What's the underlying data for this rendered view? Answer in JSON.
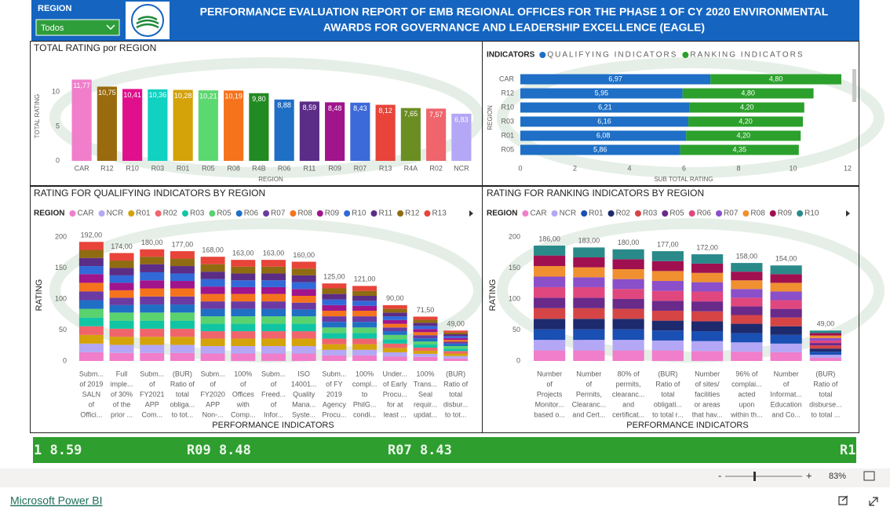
{
  "header": {
    "slicer_label": "REGION",
    "slicer_value": "Todos",
    "title_lines": [
      "PERFORMANCE EVALUATION REPORT OF EMB REGIONAL OFFICES FOR THE PHASE 1 OF CY 2020 ENVIRONMENTAL",
      "AWARDS FOR GOVERNANCE AND LEADERSHIP EXCELLENCE (EAGLE)"
    ]
  },
  "chart_data": [
    {
      "type": "bar",
      "title": "TOTAL RATING por REGION",
      "x_label": "REGION",
      "y_label": "TOTAL RATING",
      "categories": [
        "CAR",
        "R12",
        "R10",
        "R03",
        "R01",
        "R05",
        "R08",
        "R4B",
        "R06",
        "R11",
        "R09",
        "R07",
        "R13",
        "R4A",
        "R02",
        "NCR"
      ],
      "values": [
        11.77,
        10.75,
        10.41,
        10.36,
        10.28,
        10.21,
        10.19,
        9.8,
        8.88,
        8.59,
        8.48,
        8.43,
        8.12,
        7.65,
        7.57,
        6.83
      ],
      "value_labels": [
        "11,77",
        "10,75",
        "10,41",
        "10,36",
        "10,28",
        "10,21",
        "10,19",
        "9,80",
        "8,88",
        "8,59",
        "8,48",
        "8,43",
        "8,12",
        "7,65",
        "7,57",
        "6,83"
      ],
      "colors": [
        "#f07ecb",
        "#9a6b0e",
        "#e0108c",
        "#11d1c1",
        "#d4a30a",
        "#5cd870",
        "#f5731d",
        "#228a22",
        "#1f6fc5",
        "#5b2d86",
        "#a0148c",
        "#3c6ad8",
        "#e8443a",
        "#6b8e23",
        "#f0646c",
        "#b4a7f5"
      ],
      "ylim": [
        0,
        13
      ],
      "yticks": [
        0,
        5,
        10
      ]
    },
    {
      "type": "hbar_stacked",
      "legend_title": "INDICATORS",
      "x_label": "SUB TOTAL RATING",
      "y_label": "REGION",
      "categories": [
        "CAR",
        "R12",
        "R10",
        "R03",
        "R01",
        "R05"
      ],
      "series": [
        {
          "name": "QUALIFYING INDICATORS",
          "color": "#1e6fc5",
          "values": [
            6.97,
            5.95,
            6.21,
            6.16,
            6.08,
            5.86
          ],
          "value_labels": [
            "6,97",
            "5,95",
            "6,21",
            "6,16",
            "6,08",
            "5,86"
          ]
        },
        {
          "name": "RANKING INDICATORS",
          "color": "#2ca02c",
          "values": [
            4.8,
            4.8,
            4.2,
            4.2,
            4.2,
            4.35
          ],
          "value_labels": [
            "4,80",
            "4,80",
            "4,20",
            "4,20",
            "4,20",
            "4,35"
          ]
        }
      ],
      "xlim": [
        0,
        12
      ],
      "xticks": [
        0,
        2,
        4,
        6,
        8,
        10,
        12
      ]
    },
    {
      "type": "stacked_bar",
      "title": "RATING FOR QUALIFYING INDICATORS BY REGION",
      "legend_title": "REGION",
      "x_label": "PERFORMANCE INDICATORS",
      "y_label": "RATING",
      "categories": [
        [
          "Subm...",
          "of 2019",
          "SALN",
          "of",
          "Offici..."
        ],
        [
          "Full",
          "imple...",
          "of 30%",
          "of the",
          "prior ..."
        ],
        [
          "Subm...",
          "of",
          "FY2021",
          "APP",
          "Com..."
        ],
        [
          "(BUR)",
          "Ratio of",
          "total",
          "obliga...",
          "to tot..."
        ],
        [
          "Subm...",
          "of",
          "FY2020",
          "APP",
          "Non-..."
        ],
        [
          "100%",
          "of",
          "Offices",
          "with",
          "Comp..."
        ],
        [
          "Subm...",
          "of",
          "Freed...",
          "of",
          "Infor..."
        ],
        [
          "ISO",
          "14001...",
          "Quality",
          "Mana...",
          "Syste..."
        ],
        [
          "Subm...",
          "of FY",
          "2019",
          "Agency",
          "Procu..."
        ],
        [
          "100%",
          "compl...",
          "to",
          "PhilG...",
          "condi..."
        ],
        [
          "Under...",
          "of Early",
          "Procu...",
          "for at",
          "least ..."
        ],
        [
          "100%",
          "Trans...",
          "Seal",
          "requir...",
          "updat..."
        ],
        [
          "(BUR)",
          "Ratio of",
          "total",
          "disbur...",
          "to tot..."
        ]
      ],
      "series": [
        {
          "name": "CAR",
          "color": "#f07ecb",
          "values": [
            14,
            13,
            13,
            13,
            12,
            12,
            12,
            12,
            9,
            9,
            7,
            6.5,
            4
          ]
        },
        {
          "name": "NCR",
          "color": "#b4a7f5",
          "values": [
            14,
            13,
            13,
            13,
            12,
            12,
            12,
            12,
            9,
            9,
            7,
            5,
            4
          ]
        },
        {
          "name": "R01",
          "color": "#d4a30a",
          "values": [
            14,
            13,
            13,
            13,
            12,
            12,
            12,
            12,
            9,
            9,
            7,
            5,
            4
          ]
        },
        {
          "name": "R02",
          "color": "#f0646c",
          "values": [
            14,
            13,
            13,
            13,
            12,
            12,
            12,
            12,
            9,
            9,
            7,
            5,
            4
          ]
        },
        {
          "name": "R03",
          "color": "#11c5a4",
          "values": [
            14,
            13,
            13,
            13,
            12,
            12,
            12,
            12,
            9,
            9,
            7,
            5,
            4
          ]
        },
        {
          "name": "R05",
          "color": "#5ad26e",
          "values": [
            14,
            13,
            13,
            13,
            12,
            12,
            12,
            12,
            9,
            9,
            7,
            5,
            4
          ]
        },
        {
          "name": "R06",
          "color": "#1f6fc5",
          "values": [
            14,
            12,
            13,
            13,
            12,
            12,
            12,
            11,
            9,
            9,
            6,
            5,
            4
          ]
        },
        {
          "name": "R07",
          "color": "#6b3aa3",
          "values": [
            14,
            12,
            13,
            13,
            12,
            12,
            12,
            11,
            9,
            9,
            6,
            5,
            3
          ]
        },
        {
          "name": "R08",
          "color": "#f5731d",
          "values": [
            14,
            12,
            13,
            13,
            12,
            12,
            12,
            11,
            9,
            9,
            6,
            5,
            3
          ]
        },
        {
          "name": "R09",
          "color": "#a0148c",
          "values": [
            14,
            12,
            13,
            12,
            12,
            11,
            11,
            11,
            9,
            8,
            6,
            5,
            3
          ]
        },
        {
          "name": "R10",
          "color": "#3269d8",
          "values": [
            13,
            12,
            13,
            12,
            12,
            11,
            11,
            11,
            9,
            8,
            6,
            5,
            3
          ]
        },
        {
          "name": "R11",
          "color": "#5b2d86",
          "values": [
            13,
            12,
            13,
            12,
            12,
            11,
            11,
            11,
            9,
            8,
            6,
            5,
            3
          ]
        },
        {
          "name": "R12",
          "color": "#8f6b12",
          "values": [
            13,
            12,
            12,
            12,
            12,
            11,
            11,
            11,
            9,
            8,
            6,
            5,
            3
          ]
        },
        {
          "name": "R13",
          "color": "#e8443a",
          "values": [
            13,
            12,
            12,
            12,
            12,
            11,
            11,
            11,
            8,
            8,
            6,
            5,
            3
          ]
        }
      ],
      "totals": [
        192,
        174,
        180,
        177,
        168,
        163,
        163,
        160,
        125,
        121,
        90,
        71.5,
        49
      ],
      "total_labels": [
        "192,00",
        "174,00",
        "180,00",
        "177,00",
        "168,00",
        "163,00",
        "163,00",
        "160,00",
        "125,00",
        "121,00",
        "90,00",
        "71,50",
        "49,00"
      ],
      "ylim": [
        0,
        210
      ],
      "yticks": [
        0,
        50,
        100,
        150,
        200
      ]
    },
    {
      "type": "stacked_bar",
      "title": "RATING FOR RANKING INDICATORS BY REGION",
      "legend_title": "REGION",
      "x_label": "PERFORMANCE INDICATORS",
      "y_label": "RATING",
      "categories": [
        [
          "Number",
          "of",
          "Projects",
          "Monitor...",
          "based o..."
        ],
        [
          "Number",
          "of",
          "Permits,",
          "Clearanc...",
          "and Cert..."
        ],
        [
          "80% of",
          "permits,",
          "clearanc...",
          "and",
          "certificat..."
        ],
        [
          "(BUR)",
          "Ratio of",
          "total",
          "obligati...",
          "to total r..."
        ],
        [
          "Number",
          "of sites/",
          "facilities",
          "or areas",
          "that hav..."
        ],
        [
          "96% of",
          "complai...",
          "acted",
          "upon",
          "within th..."
        ],
        [
          "Number",
          "of",
          "Informat...",
          "Education",
          "and Co..."
        ],
        [
          "(BUR)",
          "Ratio of",
          "total",
          "disburse...",
          "to total ..."
        ]
      ],
      "series": [
        {
          "name": "CAR",
          "color": "#f07ecb",
          "values": [
            17,
            17,
            17,
            17,
            16,
            15,
            14,
            5
          ]
        },
        {
          "name": "NCR",
          "color": "#b4a7f5",
          "values": [
            17,
            17,
            17,
            16,
            16,
            15,
            14,
            5
          ]
        },
        {
          "name": "R01",
          "color": "#1a4fb3",
          "values": [
            17,
            17,
            17,
            16,
            16,
            15,
            14,
            5
          ]
        },
        {
          "name": "R02",
          "color": "#1e2a6e",
          "values": [
            17,
            17,
            17,
            16,
            16,
            15,
            14,
            5
          ]
        },
        {
          "name": "R03",
          "color": "#d64545",
          "values": [
            17,
            17,
            16,
            16,
            16,
            14,
            14,
            5
          ]
        },
        {
          "name": "R05",
          "color": "#6a2a8a",
          "values": [
            17,
            17,
            16,
            16,
            16,
            14,
            14,
            4
          ]
        },
        {
          "name": "R06",
          "color": "#e0477f",
          "values": [
            17,
            17,
            16,
            16,
            16,
            14,
            14,
            4
          ]
        },
        {
          "name": "R07",
          "color": "#8a4fc9",
          "values": [
            17,
            16,
            16,
            16,
            15,
            14,
            14,
            4
          ]
        },
        {
          "name": "R08",
          "color": "#f09030",
          "values": [
            17,
            16,
            16,
            16,
            15,
            14,
            14,
            4
          ]
        },
        {
          "name": "R09",
          "color": "#a01050",
          "values": [
            17,
            16,
            16,
            16,
            15,
            14,
            14,
            4
          ]
        },
        {
          "name": "R10",
          "color": "#2a8a8a",
          "values": [
            16,
            16,
            16,
            16,
            15,
            14,
            14,
            4
          ]
        }
      ],
      "totals": [
        186,
        183,
        180,
        177,
        172,
        158,
        154,
        49
      ],
      "total_labels": [
        "186,00",
        "183,00",
        "180,00",
        "177,00",
        "172,00",
        "158,00",
        "154,00",
        "49,00"
      ],
      "ylim": [
        0,
        210
      ],
      "yticks": [
        0,
        50,
        100,
        150,
        200
      ]
    }
  ],
  "ticker": [
    "1 8.59",
    "R09 8.48",
    "R07 8.43",
    "R1"
  ],
  "footer": {
    "minus": "-",
    "plus": "+",
    "zoom": "83%",
    "brand": "Microsoft Power BI"
  }
}
